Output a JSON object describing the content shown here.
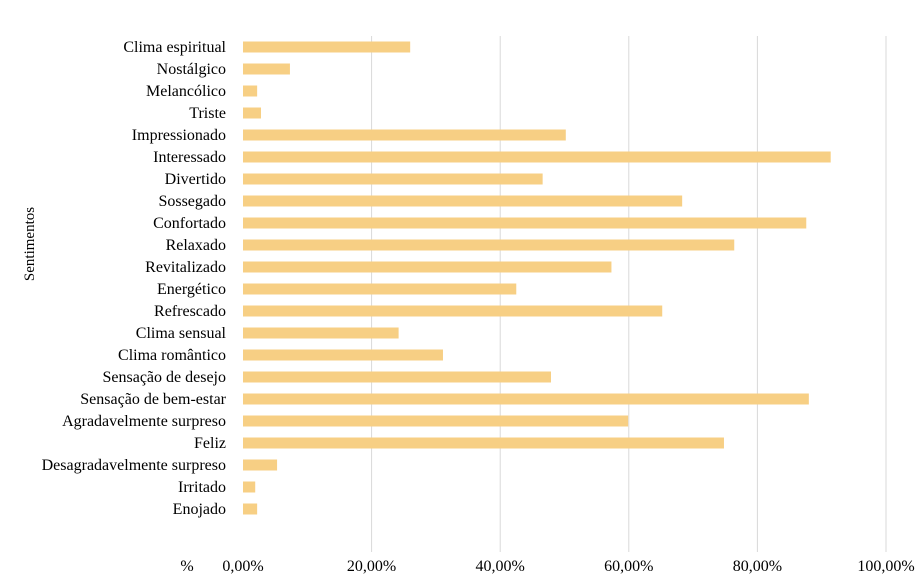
{
  "chart_data": {
    "type": "bar",
    "orientation": "horizontal",
    "ylabel": "Sentimentos",
    "x_unit_label": "%",
    "xlim": [
      0,
      100
    ],
    "x_ticks": [
      "0,00%",
      "20,00%",
      "40,00%",
      "60,00%",
      "80,00%",
      "100,00%"
    ],
    "grid": "vertical",
    "legend": "none",
    "bar_color": "#F7CF84",
    "categories": [
      "Clima espiritual",
      "Nostálgico",
      "Melancólico",
      "Triste",
      "Impressionado",
      "Interessado",
      "Divertido",
      "Sossegado",
      "Confortado",
      "Relaxado",
      "Revitalizado",
      "Energético",
      "Refrescado",
      "Clima sensual",
      "Clima romântico",
      "Sensação de desejo",
      "Sensação de bem-estar",
      "Agradavelmente surpreso",
      "Feliz",
      "Desagradavelmente surpreso",
      "Irritado",
      "Enojado"
    ],
    "values": [
      26.0,
      7.3,
      2.2,
      2.8,
      50.2,
      91.4,
      46.6,
      68.3,
      87.6,
      76.4,
      57.3,
      42.5,
      65.2,
      24.2,
      31.1,
      47.9,
      88.0,
      59.9,
      74.8,
      5.3,
      1.9,
      2.2
    ]
  }
}
